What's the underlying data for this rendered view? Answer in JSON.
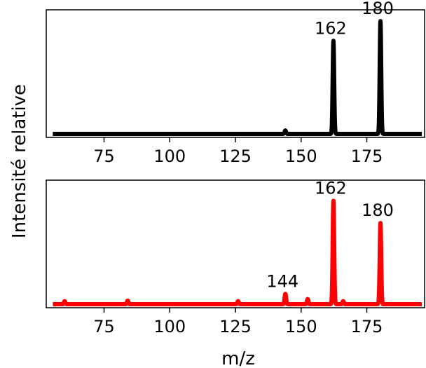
{
  "chart_data": {
    "ylabel": "Intensité relative",
    "xlabel": "m/z",
    "panels": [
      {
        "type": "line",
        "color": "#000000",
        "xlim": [
          53,
          197
        ],
        "ylim": [
          0,
          1.1
        ],
        "xticks": [
          75,
          100,
          125,
          150,
          175
        ],
        "tick_labels": [
          "75",
          "100",
          "125",
          "150",
          "175"
        ],
        "peaks": [
          {
            "x": 144,
            "y": 0.03
          },
          {
            "x": 162.3,
            "y": 0.825
          },
          {
            "x": 180.2,
            "y": 1.0
          }
        ],
        "peak_labels": [
          {
            "x": 162.3,
            "y": 0.825,
            "text": "162"
          },
          {
            "x": 180.2,
            "y": 1.0,
            "text": "180"
          }
        ]
      },
      {
        "type": "line",
        "color": "#ff0000",
        "xlim": [
          53,
          197
        ],
        "ylim": [
          0,
          1.2
        ],
        "xticks": [
          75,
          100,
          125,
          150,
          175
        ],
        "tick_labels": [
          "75",
          "100",
          "125",
          "150",
          "175"
        ],
        "peaks": [
          {
            "x": 60,
            "y": 0.03
          },
          {
            "x": 84,
            "y": 0.035
          },
          {
            "x": 126,
            "y": 0.03
          },
          {
            "x": 144,
            "y": 0.1
          },
          {
            "x": 152.5,
            "y": 0.05
          },
          {
            "x": 162.3,
            "y": 1.0
          },
          {
            "x": 166,
            "y": 0.03
          },
          {
            "x": 180.2,
            "y": 0.785
          }
        ],
        "peak_labels": [
          {
            "x": 144,
            "y": 0.1,
            "text": "144"
          },
          {
            "x": 162.3,
            "y": 1.0,
            "text": "162"
          },
          {
            "x": 180.2,
            "y": 0.785,
            "text": "180"
          }
        ]
      }
    ]
  }
}
